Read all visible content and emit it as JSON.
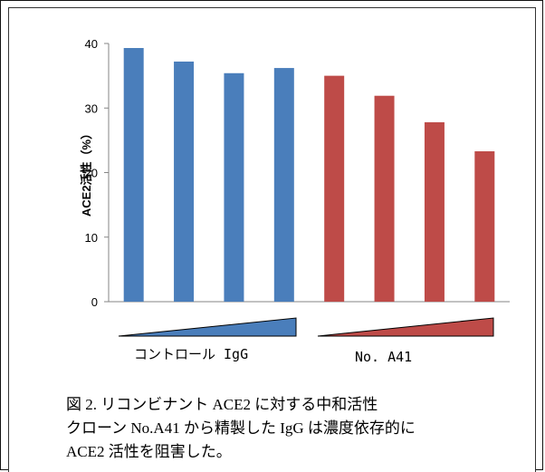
{
  "chart_data": {
    "type": "bar",
    "ylabel": "ACE2活性（%）",
    "ylim": [
      0,
      40
    ],
    "yticks": [
      0,
      10,
      20,
      30,
      40
    ],
    "grid": false,
    "groups": [
      {
        "label": "コントロール IgG",
        "color": "#4a7ebb",
        "values": [
          39.3,
          37.2,
          35.4,
          36.2
        ]
      },
      {
        "label": "No. A41",
        "color": "#be4b48",
        "values": [
          35.0,
          31.9,
          27.8,
          23.3
        ]
      }
    ]
  },
  "caption": {
    "line1": "図 2. リコンビナント ACE2 に対する中和活性",
    "line2": "クローン No.A41 から精製した IgG は濃度依存的に",
    "line3": "ACE2 活性を阻害した。"
  }
}
